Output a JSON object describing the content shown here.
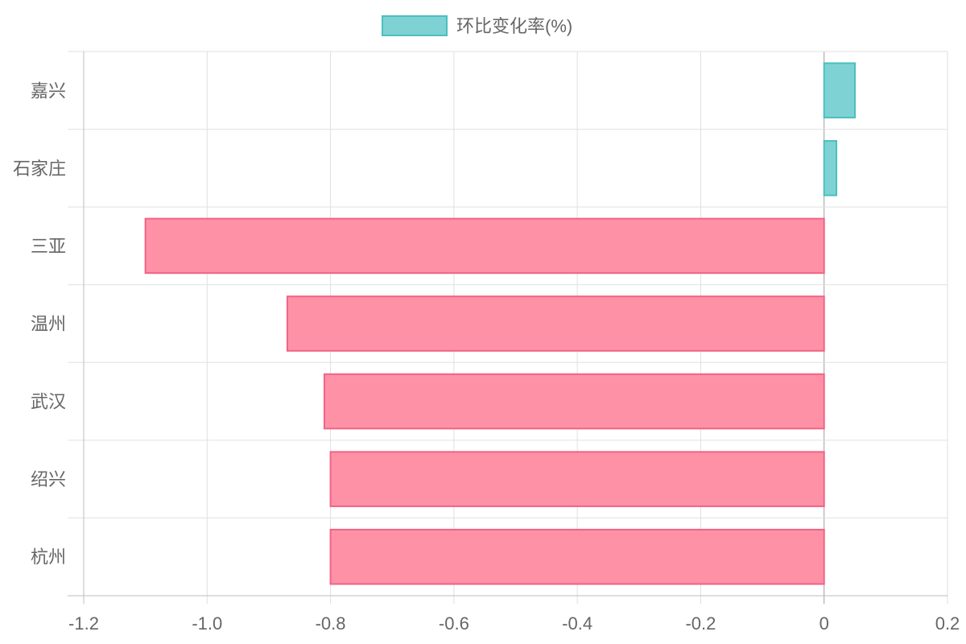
{
  "chart_data": {
    "type": "bar",
    "orientation": "horizontal",
    "categories": [
      "嘉兴",
      "石家庄",
      "三亚",
      "温州",
      "武汉",
      "绍兴",
      "杭州"
    ],
    "series": [
      {
        "name": "环比变化率(%)",
        "values": [
          0.05,
          0.02,
          -1.1,
          -0.87,
          -0.81,
          -0.8,
          -0.8
        ]
      }
    ],
    "xlim": [
      -1.2,
      0.2
    ],
    "x_ticks": [
      "-1.2",
      "-1.0",
      "-0.8",
      "-0.6",
      "-0.4",
      "-0.2",
      "0",
      "0.2"
    ],
    "grid": true,
    "legend_position": "top-center",
    "colors": {
      "positive_fill": "#7fd2d4",
      "positive_stroke": "#4bbfc0",
      "negative_fill": "#ff91a7",
      "negative_stroke": "#f06384",
      "grid": "#e0e0e0",
      "axis": "#bdbdbd",
      "zero_line": "#9e9e9e"
    }
  }
}
